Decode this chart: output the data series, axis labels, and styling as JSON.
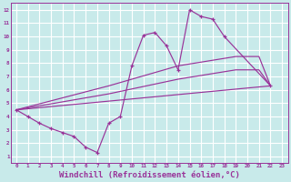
{
  "bg_color": "#c8eaea",
  "line_color": "#993399",
  "grid_color": "#ffffff",
  "xlabel": "Windchill (Refroidissement éolien,°C)",
  "xlabel_fontsize": 6.5,
  "xlim": [
    -0.5,
    23.5
  ],
  "ylim": [
    0.5,
    12.5
  ],
  "line1_x": [
    0,
    1,
    2,
    3,
    4,
    5,
    6,
    7,
    8,
    9,
    10,
    11,
    12,
    13,
    14,
    15,
    16,
    17,
    18,
    22
  ],
  "line1_y": [
    4.5,
    4.0,
    3.5,
    3.1,
    2.8,
    2.5,
    1.7,
    1.3,
    3.5,
    4.0,
    7.8,
    10.1,
    10.3,
    9.3,
    7.5,
    12.0,
    11.5,
    11.3,
    10.0,
    6.3
  ],
  "line2_x": [
    0,
    8,
    14,
    19,
    21,
    22
  ],
  "line2_y": [
    4.5,
    6.3,
    7.8,
    8.5,
    8.5,
    6.3
  ],
  "line3_x": [
    0,
    8,
    14,
    19,
    21,
    22
  ],
  "line3_y": [
    4.5,
    5.7,
    6.8,
    7.5,
    7.5,
    6.3
  ],
  "line4_x": [
    0,
    22
  ],
  "line4_y": [
    4.5,
    6.3
  ]
}
